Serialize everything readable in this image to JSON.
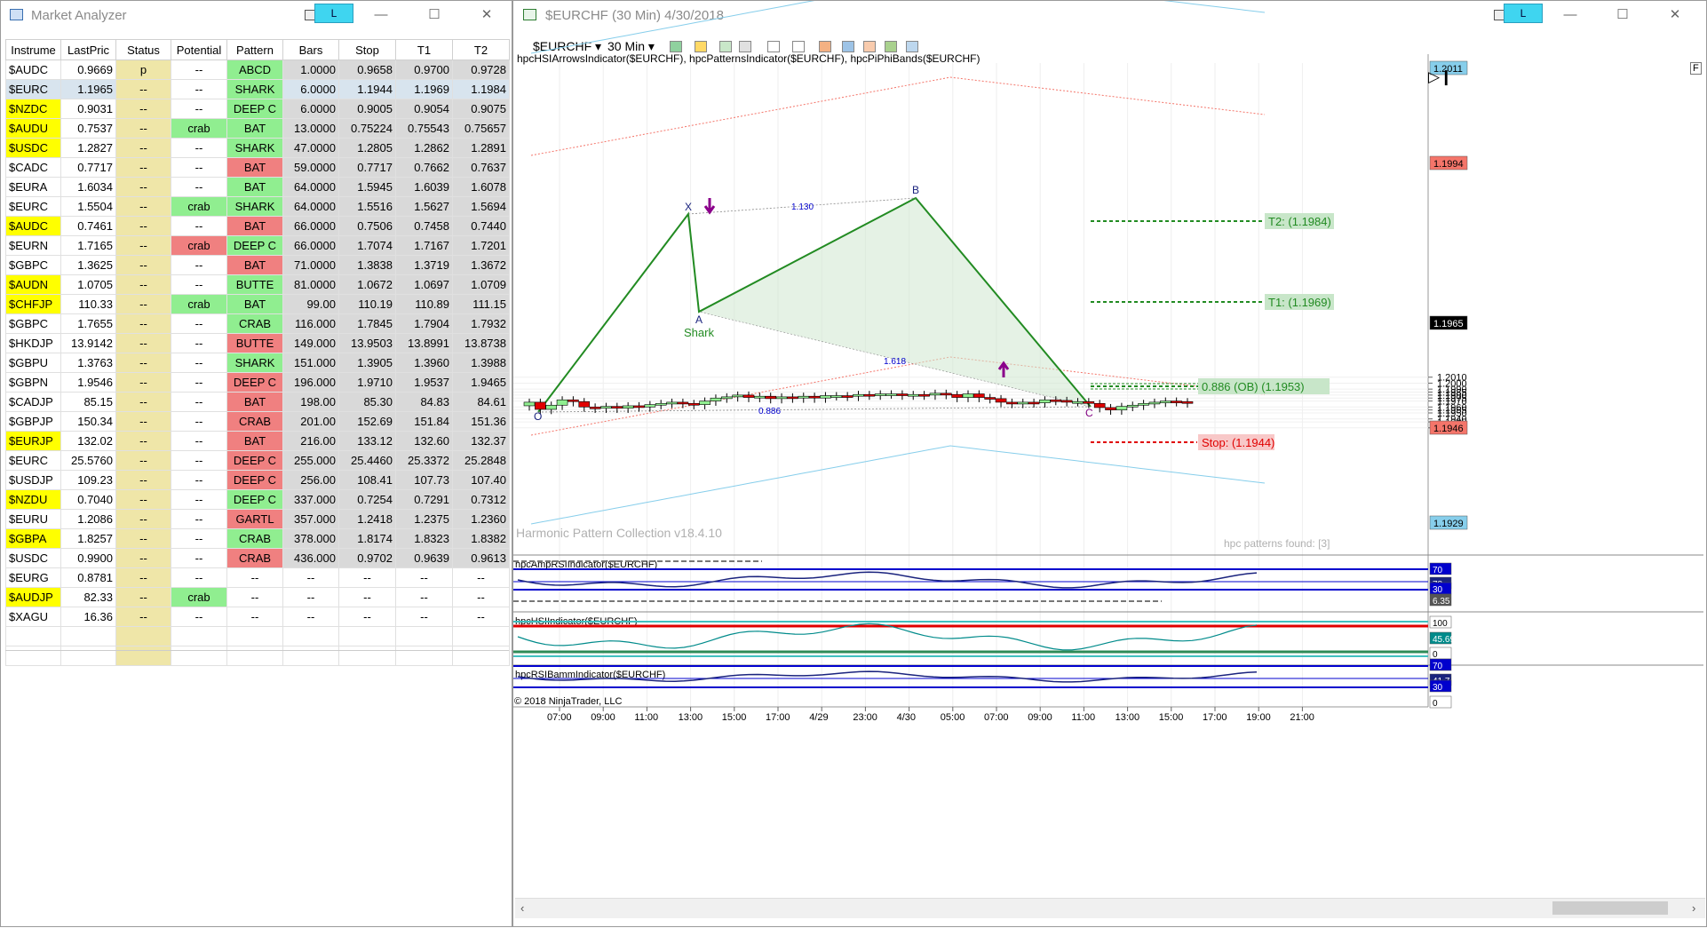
{
  "analyzer": {
    "title": "Market Analyzer",
    "badge": "L",
    "columns": [
      "Instrume",
      "LastPric",
      "Status",
      "Potential",
      "Pattern",
      "Bars",
      "Stop",
      "T1",
      "T2"
    ],
    "rows": [
      {
        "inst": "$AUDC",
        "last": "0.9669",
        "status": "p",
        "pot": "--",
        "pat": "ABCD",
        "bars": "1.0000",
        "stop": "0.9658",
        "t1": "0.9700",
        "t2": "0.9728",
        "hl": "",
        "pc": "g",
        "sel": false
      },
      {
        "inst": "$EURC",
        "last": "1.1965",
        "status": "--",
        "pot": "--",
        "pat": "SHARK",
        "bars": "6.0000",
        "stop": "1.1944",
        "t1": "1.1969",
        "t2": "1.1984",
        "hl": "",
        "pc": "g",
        "sel": true
      },
      {
        "inst": "$NZDC",
        "last": "0.9031",
        "status": "--",
        "pot": "--",
        "pat": "DEEP C",
        "bars": "6.0000",
        "stop": "0.9005",
        "t1": "0.9054",
        "t2": "0.9075",
        "hl": "y",
        "pc": "g",
        "sel": false
      },
      {
        "inst": "$AUDU",
        "last": "0.7537",
        "status": "--",
        "pot": "crab",
        "pat": "BAT",
        "bars": "13.0000",
        "stop": "0.75224",
        "t1": "0.75543",
        "t2": "0.75657",
        "hl": "y",
        "pc": "g",
        "sel": false
      },
      {
        "inst": "$USDC",
        "last": "1.2827",
        "status": "--",
        "pot": "--",
        "pat": "SHARK",
        "bars": "47.0000",
        "stop": "1.2805",
        "t1": "1.2862",
        "t2": "1.2891",
        "hl": "y",
        "pc": "g",
        "sel": false
      },
      {
        "inst": "$CADC",
        "last": "0.7717",
        "status": "--",
        "pot": "--",
        "pat": "BAT",
        "bars": "59.0000",
        "stop": "0.7717",
        "t1": "0.7662",
        "t2": "0.7637",
        "hl": "",
        "pc": "r",
        "sel": false
      },
      {
        "inst": "$EURA",
        "last": "1.6034",
        "status": "--",
        "pot": "--",
        "pat": "BAT",
        "bars": "64.0000",
        "stop": "1.5945",
        "t1": "1.6039",
        "t2": "1.6078",
        "hl": "",
        "pc": "g",
        "sel": false
      },
      {
        "inst": "$EURC",
        "last": "1.5504",
        "status": "--",
        "pot": "crab",
        "pat": "SHARK",
        "bars": "64.0000",
        "stop": "1.5516",
        "t1": "1.5627",
        "t2": "1.5694",
        "hl": "",
        "pc": "g",
        "sel": false
      },
      {
        "inst": "$AUDC",
        "last": "0.7461",
        "status": "--",
        "pot": "--",
        "pat": "BAT",
        "bars": "66.0000",
        "stop": "0.7506",
        "t1": "0.7458",
        "t2": "0.7440",
        "hl": "y",
        "pc": "r",
        "sel": false
      },
      {
        "inst": "$EURN",
        "last": "1.7165",
        "status": "--",
        "pot": "crab",
        "pat": "DEEP C",
        "bars": "66.0000",
        "stop": "1.7074",
        "t1": "1.7167",
        "t2": "1.7201",
        "hl": "",
        "pc": "g",
        "sel": false,
        "potr": true
      },
      {
        "inst": "$GBPC",
        "last": "1.3625",
        "status": "--",
        "pot": "--",
        "pat": "BAT",
        "bars": "71.0000",
        "stop": "1.3838",
        "t1": "1.3719",
        "t2": "1.3672",
        "hl": "",
        "pc": "r",
        "sel": false
      },
      {
        "inst": "$AUDN",
        "last": "1.0705",
        "status": "--",
        "pot": "--",
        "pat": "BUTTE",
        "bars": "81.0000",
        "stop": "1.0672",
        "t1": "1.0697",
        "t2": "1.0709",
        "hl": "y",
        "pc": "g",
        "sel": false
      },
      {
        "inst": "$CHFJP",
        "last": "110.33",
        "status": "--",
        "pot": "crab",
        "pat": "BAT",
        "bars": "99.00",
        "stop": "110.19",
        "t1": "110.89",
        "t2": "111.15",
        "hl": "y",
        "pc": "g",
        "sel": false
      },
      {
        "inst": "$GBPC",
        "last": "1.7655",
        "status": "--",
        "pot": "--",
        "pat": "CRAB",
        "bars": "116.000",
        "stop": "1.7845",
        "t1": "1.7904",
        "t2": "1.7932",
        "hl": "",
        "pc": "g",
        "sel": false
      },
      {
        "inst": "$HKDJP",
        "last": "13.9142",
        "status": "--",
        "pot": "--",
        "pat": "BUTTE",
        "bars": "149.000",
        "stop": "13.9503",
        "t1": "13.8991",
        "t2": "13.8738",
        "hl": "",
        "pc": "r",
        "sel": false
      },
      {
        "inst": "$GBPU",
        "last": "1.3763",
        "status": "--",
        "pot": "--",
        "pat": "SHARK",
        "bars": "151.000",
        "stop": "1.3905",
        "t1": "1.3960",
        "t2": "1.3988",
        "hl": "",
        "pc": "g",
        "sel": false
      },
      {
        "inst": "$GBPN",
        "last": "1.9546",
        "status": "--",
        "pot": "--",
        "pat": "DEEP C",
        "bars": "196.000",
        "stop": "1.9710",
        "t1": "1.9537",
        "t2": "1.9465",
        "hl": "",
        "pc": "r",
        "sel": false
      },
      {
        "inst": "$CADJP",
        "last": "85.15",
        "status": "--",
        "pot": "--",
        "pat": "BAT",
        "bars": "198.00",
        "stop": "85.30",
        "t1": "84.83",
        "t2": "84.61",
        "hl": "",
        "pc": "r",
        "sel": false
      },
      {
        "inst": "$GBPJP",
        "last": "150.34",
        "status": "--",
        "pot": "--",
        "pat": "CRAB",
        "bars": "201.00",
        "stop": "152.69",
        "t1": "151.84",
        "t2": "151.36",
        "hl": "",
        "pc": "r",
        "sel": false
      },
      {
        "inst": "$EURJP",
        "last": "132.02",
        "status": "--",
        "pot": "--",
        "pat": "BAT",
        "bars": "216.00",
        "stop": "133.12",
        "t1": "132.60",
        "t2": "132.37",
        "hl": "y",
        "pc": "r",
        "sel": false
      },
      {
        "inst": "$EURC",
        "last": "25.5760",
        "status": "--",
        "pot": "--",
        "pat": "DEEP C",
        "bars": "255.000",
        "stop": "25.4460",
        "t1": "25.3372",
        "t2": "25.2848",
        "hl": "",
        "pc": "r",
        "sel": false
      },
      {
        "inst": "$USDJP",
        "last": "109.23",
        "status": "--",
        "pot": "--",
        "pat": "DEEP C",
        "bars": "256.00",
        "stop": "108.41",
        "t1": "107.73",
        "t2": "107.40",
        "hl": "",
        "pc": "r",
        "sel": false
      },
      {
        "inst": "$NZDU",
        "last": "0.7040",
        "status": "--",
        "pot": "--",
        "pat": "DEEP C",
        "bars": "337.000",
        "stop": "0.7254",
        "t1": "0.7291",
        "t2": "0.7312",
        "hl": "y",
        "pc": "g",
        "sel": false
      },
      {
        "inst": "$EURU",
        "last": "1.2086",
        "status": "--",
        "pot": "--",
        "pat": "GARTL",
        "bars": "357.000",
        "stop": "1.2418",
        "t1": "1.2375",
        "t2": "1.2360",
        "hl": "",
        "pc": "r",
        "sel": false
      },
      {
        "inst": "$GBPA",
        "last": "1.8257",
        "status": "--",
        "pot": "--",
        "pat": "CRAB",
        "bars": "378.000",
        "stop": "1.8174",
        "t1": "1.8323",
        "t2": "1.8382",
        "hl": "y",
        "pc": "g",
        "sel": false
      },
      {
        "inst": "$USDC",
        "last": "0.9900",
        "status": "--",
        "pot": "--",
        "pat": "CRAB",
        "bars": "436.000",
        "stop": "0.9702",
        "t1": "0.9639",
        "t2": "0.9613",
        "hl": "",
        "pc": "r",
        "sel": false
      },
      {
        "inst": "$EURG",
        "last": "0.8781",
        "status": "--",
        "pot": "--",
        "pat": "--",
        "bars": "--",
        "stop": "--",
        "t1": "--",
        "t2": "--",
        "hl": "",
        "pc": "",
        "sel": false
      },
      {
        "inst": "$AUDJP",
        "last": "82.33",
        "status": "--",
        "pot": "crab",
        "pat": "--",
        "bars": "--",
        "stop": "--",
        "t1": "--",
        "t2": "--",
        "hl": "y",
        "pc": "",
        "sel": false
      },
      {
        "inst": "$XAGU",
        "last": "16.36",
        "status": "--",
        "pot": "--",
        "pat": "--",
        "bars": "--",
        "stop": "--",
        "t1": "--",
        "t2": "--",
        "hl": "",
        "pc": "",
        "sel": false
      }
    ]
  },
  "chart": {
    "title": "$EURCHF (30 Min)  4/30/2018",
    "badge": "L",
    "toolbar": {
      "instrument": "$EURCHF",
      "interval": "30 Min"
    },
    "indicators_line": "hpcHSIArrowsIndicator($EURCHF),  hpcPatternsIndicator($EURCHF),  hpcPiPhiBands($EURCHF)",
    "watermark": "Harmonic Pattern Collection v18.4.10",
    "found": "hpc patterns found: [3]",
    "copyright": "© 2018 NinjaTrader, LLC",
    "f_label": "F",
    "price_labels": [
      "1.2010",
      "1.2000",
      "1.1990",
      "1.1985",
      "1.1980",
      "1.1975",
      "1.1970",
      "1.1960",
      "1.1955",
      "1.1950",
      "1.1940",
      "1.1935",
      "1.1925"
    ],
    "price_badges": [
      {
        "text": "1.2011",
        "kind": "blue"
      },
      {
        "text": "1.1994",
        "kind": "red"
      },
      {
        "text": "1.1965",
        "kind": "black"
      },
      {
        "text": "1.1946",
        "kind": "red"
      },
      {
        "text": "1.1929",
        "kind": "blue"
      }
    ],
    "time_labels": [
      "07:00",
      "09:00",
      "11:00",
      "13:00",
      "15:00",
      "17:00",
      "4/29",
      "23:00",
      "4/30",
      "05:00",
      "07:00",
      "09:00",
      "11:00",
      "13:00",
      "15:00",
      "17:00",
      "19:00",
      "21:00"
    ],
    "pattern_points": [
      "X",
      "A",
      "B",
      "C",
      "O"
    ],
    "pattern_name": "Shark",
    "ratios": [
      "1.130",
      "1.618",
      "0.886"
    ],
    "levels": [
      {
        "label": "T2: (1.1984)",
        "kind": "t"
      },
      {
        "label": "T1: (1.1969)",
        "kind": "t"
      },
      {
        "label": "0.886 (OB) (1.1953)",
        "kind": "t"
      },
      {
        "label": "Stop: (1.1944)",
        "kind": "stop"
      }
    ],
    "panels": [
      {
        "name": "hpcAmpRSIIndicator($EURCHF)",
        "badges": [
          "70",
          "78",
          "30",
          "6.35"
        ]
      },
      {
        "name": "hpcHSIIndicator($EURCHF)",
        "badges": [
          "100",
          "45.69",
          "0"
        ]
      },
      {
        "name": "hpcRSIBammIndicator($EURCHF)",
        "badges": [
          "70",
          "41.7",
          "30",
          "0"
        ]
      }
    ],
    "colors": {
      "up": "#90ee90",
      "down": "#e00000",
      "pattern": "#228b22",
      "band_red": "#f4756a",
      "band_blue": "#87ceeb",
      "axis_blue": "#0000cd"
    }
  }
}
